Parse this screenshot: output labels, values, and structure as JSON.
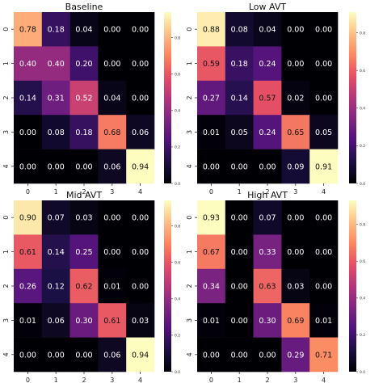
{
  "chart_data": [
    {
      "type": "heatmap",
      "title": "Baseline",
      "x": [
        "0",
        "1",
        "2",
        "3",
        "4"
      ],
      "y": [
        "0",
        "1",
        "2",
        "3",
        "4"
      ],
      "values": [
        [
          0.78,
          0.18,
          0.04,
          0.0,
          0.0
        ],
        [
          0.4,
          0.4,
          0.2,
          0.0,
          0.0
        ],
        [
          0.14,
          0.31,
          0.52,
          0.04,
          0.0
        ],
        [
          0.0,
          0.08,
          0.18,
          0.68,
          0.06
        ],
        [
          0.0,
          0.0,
          0.0,
          0.06,
          0.94
        ]
      ],
      "colorbar": {
        "range": [
          0,
          0.94
        ],
        "ticks": [
          "0.0",
          "0.2",
          "0.4",
          "0.6",
          "0.8"
        ]
      }
    },
    {
      "type": "heatmap",
      "title": "Low AVT",
      "x": [
        "0",
        "1",
        "2",
        "3",
        "4"
      ],
      "y": [
        "0",
        "1",
        "2",
        "3",
        "4"
      ],
      "values": [
        [
          0.88,
          0.08,
          0.04,
          0.0,
          0.0
        ],
        [
          0.59,
          0.18,
          0.24,
          0.0,
          0.0
        ],
        [
          0.27,
          0.14,
          0.57,
          0.02,
          0.0
        ],
        [
          0.01,
          0.05,
          0.24,
          0.65,
          0.05
        ],
        [
          0.0,
          0.0,
          0.0,
          0.09,
          0.91
        ]
      ],
      "colorbar": {
        "range": [
          0,
          0.91
        ],
        "ticks": [
          "0.0",
          "0.2",
          "0.4",
          "0.6",
          "0.8"
        ]
      }
    },
    {
      "type": "heatmap",
      "title": "Mid AVT",
      "x": [
        "0",
        "1",
        "2",
        "3",
        "4"
      ],
      "y": [
        "0",
        "1",
        "2",
        "3",
        "4"
      ],
      "values": [
        [
          0.9,
          0.07,
          0.03,
          0.0,
          0.0
        ],
        [
          0.61,
          0.14,
          0.25,
          0.0,
          0.0
        ],
        [
          0.26,
          0.12,
          0.62,
          0.01,
          0.0
        ],
        [
          0.01,
          0.06,
          0.3,
          0.61,
          0.03
        ],
        [
          0.0,
          0.0,
          0.0,
          0.06,
          0.94
        ]
      ],
      "colorbar": {
        "range": [
          0,
          0.94
        ],
        "ticks": [
          "0.0",
          "0.2",
          "0.4",
          "0.6",
          "0.8"
        ]
      }
    },
    {
      "type": "heatmap",
      "title": "High AVT",
      "x": [
        "0",
        "1",
        "2",
        "3",
        "4"
      ],
      "y": [
        "0",
        "1",
        "2",
        "3",
        "4"
      ],
      "values": [
        [
          0.93,
          0.0,
          0.07,
          0.0,
          0.0
        ],
        [
          0.67,
          0.0,
          0.33,
          0.0,
          0.0
        ],
        [
          0.34,
          0.0,
          0.63,
          0.03,
          0.0
        ],
        [
          0.01,
          0.0,
          0.3,
          0.69,
          0.01
        ],
        [
          0.0,
          0.0,
          0.0,
          0.29,
          0.71
        ]
      ],
      "colorbar": {
        "range": [
          0,
          0.93
        ],
        "ticks": [
          "0.0",
          "0.2",
          "0.4",
          "0.6",
          "0.8"
        ]
      }
    }
  ],
  "colormap": "magma"
}
